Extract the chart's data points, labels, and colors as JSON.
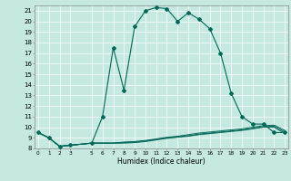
{
  "xlabel": "Humidex (Indice chaleur)",
  "background_color": "#c5e8e0",
  "line_color": "#006858",
  "xlim": [
    -0.3,
    23.3
  ],
  "ylim": [
    8.0,
    21.5
  ],
  "yticks": [
    8,
    9,
    10,
    11,
    12,
    13,
    14,
    15,
    16,
    17,
    18,
    19,
    20,
    21
  ],
  "x_ticks": [
    0,
    1,
    2,
    3,
    5,
    6,
    7,
    8,
    9,
    10,
    11,
    12,
    13,
    14,
    15,
    16,
    17,
    18,
    19,
    20,
    21,
    22,
    23
  ],
  "main_x": [
    0,
    1,
    2,
    3,
    5,
    6,
    7,
    8,
    9,
    10,
    11,
    12,
    13,
    14,
    15,
    16,
    17,
    18,
    19,
    20,
    21,
    22,
    23
  ],
  "main_y": [
    9.5,
    9.0,
    8.2,
    8.3,
    8.5,
    11.0,
    17.5,
    13.5,
    19.5,
    21.0,
    21.3,
    21.2,
    20.0,
    20.8,
    20.2,
    19.3,
    17.0,
    13.2,
    11.0,
    10.3,
    10.3,
    9.5,
    9.5
  ],
  "flat1_x": [
    0,
    1,
    2,
    3,
    5,
    6,
    7,
    8,
    9,
    10,
    11,
    12,
    13,
    14,
    15,
    16,
    17,
    18,
    19,
    20,
    21,
    22,
    23
  ],
  "flat1_y": [
    9.5,
    9.0,
    8.2,
    8.3,
    8.5,
    8.5,
    8.5,
    8.6,
    8.65,
    8.75,
    8.9,
    9.05,
    9.15,
    9.3,
    9.45,
    9.55,
    9.65,
    9.75,
    9.85,
    10.0,
    10.15,
    10.2,
    9.7
  ],
  "flat2_x": [
    0,
    1,
    2,
    3,
    5,
    6,
    7,
    8,
    9,
    10,
    11,
    12,
    13,
    14,
    15,
    16,
    17,
    18,
    19,
    20,
    21,
    22,
    23
  ],
  "flat2_y": [
    9.5,
    9.0,
    8.2,
    8.3,
    8.5,
    8.5,
    8.5,
    8.55,
    8.6,
    8.7,
    8.85,
    9.0,
    9.1,
    9.2,
    9.35,
    9.45,
    9.55,
    9.65,
    9.75,
    9.9,
    10.05,
    10.1,
    9.55
  ],
  "flat3_x": [
    0,
    1,
    2,
    3,
    5,
    6,
    7,
    8,
    9,
    10,
    11,
    12,
    13,
    14,
    15,
    16,
    17,
    18,
    19,
    20,
    21,
    22,
    23
  ],
  "flat3_y": [
    9.5,
    9.0,
    8.2,
    8.3,
    8.5,
    8.5,
    8.5,
    8.5,
    8.55,
    8.65,
    8.8,
    8.95,
    9.05,
    9.15,
    9.3,
    9.4,
    9.5,
    9.6,
    9.7,
    9.85,
    10.0,
    10.0,
    9.4
  ]
}
